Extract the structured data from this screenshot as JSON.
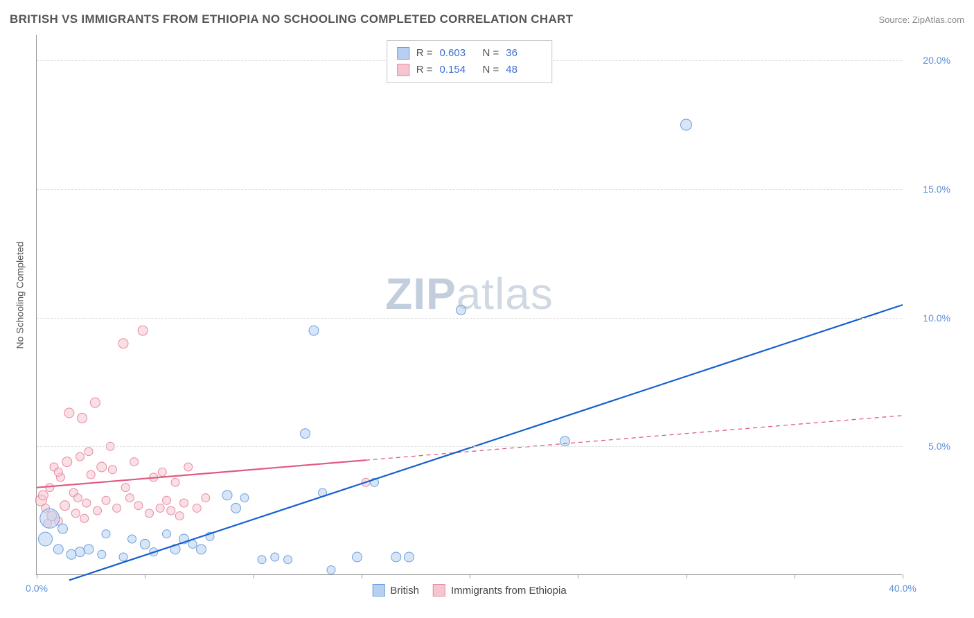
{
  "header": {
    "title": "BRITISH VS IMMIGRANTS FROM ETHIOPIA NO SCHOOLING COMPLETED CORRELATION CHART",
    "source_prefix": "Source: ",
    "source_name": "ZipAtlas.com"
  },
  "axes": {
    "ylabel": "No Schooling Completed",
    "xlim": [
      0,
      40
    ],
    "ylim": [
      0,
      21
    ],
    "xtick_step": 5,
    "yticks": [
      5,
      10,
      15,
      20
    ],
    "ytick_labels": [
      "5.0%",
      "10.0%",
      "15.0%",
      "20.0%"
    ],
    "xtick_labels": {
      "0": "0.0%",
      "40": "40.0%"
    },
    "axis_label_color": "#5b8fd6",
    "grid_color": "#e0e0e0"
  },
  "watermark": {
    "zip": "ZIP",
    "atlas": "atlas"
  },
  "series": {
    "british": {
      "label": "British",
      "color_fill": "#b8d0f0",
      "color_stroke": "#6a9fe0",
      "line_color": "#1560d0",
      "R": "0.603",
      "N": "36",
      "trend": {
        "x1": 1.5,
        "y1": -0.2,
        "x2": 40,
        "y2": 10.5
      },
      "x_max_data": 40,
      "points": [
        [
          0.4,
          1.4,
          10
        ],
        [
          0.6,
          2.2,
          14
        ],
        [
          1.0,
          1.0,
          7
        ],
        [
          1.2,
          1.8,
          7
        ],
        [
          1.6,
          0.8,
          7
        ],
        [
          2.0,
          0.9,
          7
        ],
        [
          2.4,
          1.0,
          7
        ],
        [
          3.0,
          0.8,
          6
        ],
        [
          3.2,
          1.6,
          6
        ],
        [
          4.0,
          0.7,
          6
        ],
        [
          4.4,
          1.4,
          6
        ],
        [
          5.0,
          1.2,
          7
        ],
        [
          5.4,
          0.9,
          6
        ],
        [
          6.0,
          1.6,
          6
        ],
        [
          6.4,
          1.0,
          7
        ],
        [
          6.8,
          1.4,
          7
        ],
        [
          7.2,
          1.2,
          6
        ],
        [
          7.6,
          1.0,
          7
        ],
        [
          8.0,
          1.5,
          6
        ],
        [
          8.8,
          3.1,
          7
        ],
        [
          9.2,
          2.6,
          7
        ],
        [
          9.6,
          3.0,
          6
        ],
        [
          10.4,
          0.6,
          6
        ],
        [
          11.0,
          0.7,
          6
        ],
        [
          11.6,
          0.6,
          6
        ],
        [
          12.4,
          5.5,
          7
        ],
        [
          12.8,
          9.5,
          7
        ],
        [
          13.2,
          3.2,
          6
        ],
        [
          13.6,
          0.2,
          6
        ],
        [
          14.8,
          0.7,
          7
        ],
        [
          15.6,
          3.6,
          6
        ],
        [
          16.6,
          0.7,
          7
        ],
        [
          17.2,
          0.7,
          7
        ],
        [
          19.6,
          10.3,
          7
        ],
        [
          24.4,
          5.2,
          7
        ],
        [
          30.0,
          17.5,
          8
        ]
      ]
    },
    "ethiopia": {
      "label": "Immigrants from Ethiopia",
      "color_fill": "#f5c5d0",
      "color_stroke": "#e58aa0",
      "line_color": "#e05a80",
      "R": "0.154",
      "N": "48",
      "trend": {
        "x1": 0,
        "y1": 3.4,
        "x2": 40,
        "y2": 6.2
      },
      "x_max_data": 15.2,
      "points": [
        [
          0.2,
          2.9,
          8
        ],
        [
          0.3,
          3.1,
          7
        ],
        [
          0.4,
          2.6,
          6
        ],
        [
          0.6,
          3.4,
          6
        ],
        [
          0.7,
          2.3,
          7
        ],
        [
          0.8,
          4.2,
          6
        ],
        [
          1.0,
          2.1,
          6
        ],
        [
          1.1,
          3.8,
          6
        ],
        [
          1.3,
          2.7,
          7
        ],
        [
          1.4,
          4.4,
          7
        ],
        [
          1.5,
          6.3,
          7
        ],
        [
          1.7,
          3.2,
          6
        ],
        [
          1.8,
          2.4,
          6
        ],
        [
          2.0,
          4.6,
          6
        ],
        [
          2.1,
          6.1,
          7
        ],
        [
          2.3,
          2.8,
          6
        ],
        [
          2.5,
          3.9,
          6
        ],
        [
          2.7,
          6.7,
          7
        ],
        [
          2.8,
          2.5,
          6
        ],
        [
          3.0,
          4.2,
          7
        ],
        [
          3.2,
          2.9,
          6
        ],
        [
          3.5,
          4.1,
          6
        ],
        [
          3.7,
          2.6,
          6
        ],
        [
          4.0,
          9.0,
          7
        ],
        [
          4.3,
          3.0,
          6
        ],
        [
          4.5,
          4.4,
          6
        ],
        [
          4.7,
          2.7,
          6
        ],
        [
          4.9,
          9.5,
          7
        ],
        [
          5.2,
          2.4,
          6
        ],
        [
          5.4,
          3.8,
          6
        ],
        [
          5.7,
          2.6,
          6
        ],
        [
          5.8,
          4.0,
          6
        ],
        [
          6.0,
          2.9,
          6
        ],
        [
          6.2,
          2.5,
          6
        ],
        [
          6.4,
          3.6,
          6
        ],
        [
          6.6,
          2.3,
          6
        ],
        [
          6.8,
          2.8,
          6
        ],
        [
          7.0,
          4.2,
          6
        ],
        [
          7.4,
          2.6,
          6
        ],
        [
          7.8,
          3.0,
          6
        ],
        [
          2.4,
          4.8,
          6
        ],
        [
          3.4,
          5.0,
          6
        ],
        [
          4.1,
          3.4,
          6
        ],
        [
          0.5,
          2.0,
          6
        ],
        [
          1.0,
          4.0,
          6
        ],
        [
          1.9,
          3.0,
          6
        ],
        [
          2.2,
          2.2,
          6
        ],
        [
          15.2,
          3.6,
          6
        ]
      ]
    }
  },
  "legend_top": {
    "r_label": "R =",
    "n_label": "N ="
  }
}
